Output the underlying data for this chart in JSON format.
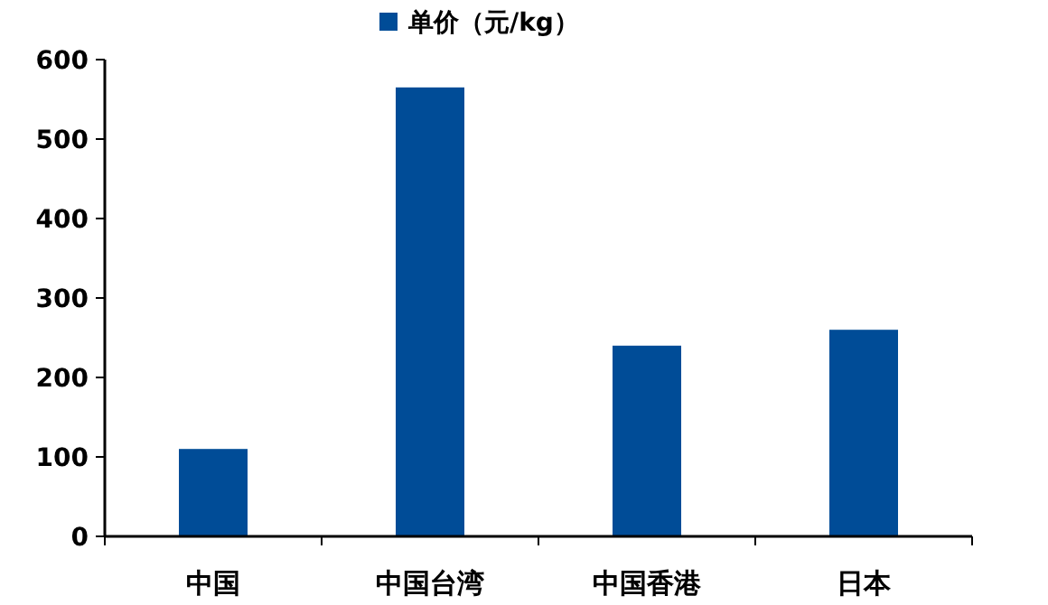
{
  "chart_data": {
    "type": "bar",
    "categories": [
      "中国",
      "中国台湾",
      "中国香港",
      "日本"
    ],
    "series": [
      {
        "name": "单价（元/kg）",
        "color": "#004c97",
        "values": [
          110,
          565,
          240,
          260
        ]
      }
    ],
    "ylim": [
      0,
      600
    ],
    "yticks": [
      0,
      100,
      200,
      300,
      400,
      500,
      600
    ],
    "grid": false,
    "legend": "top"
  }
}
